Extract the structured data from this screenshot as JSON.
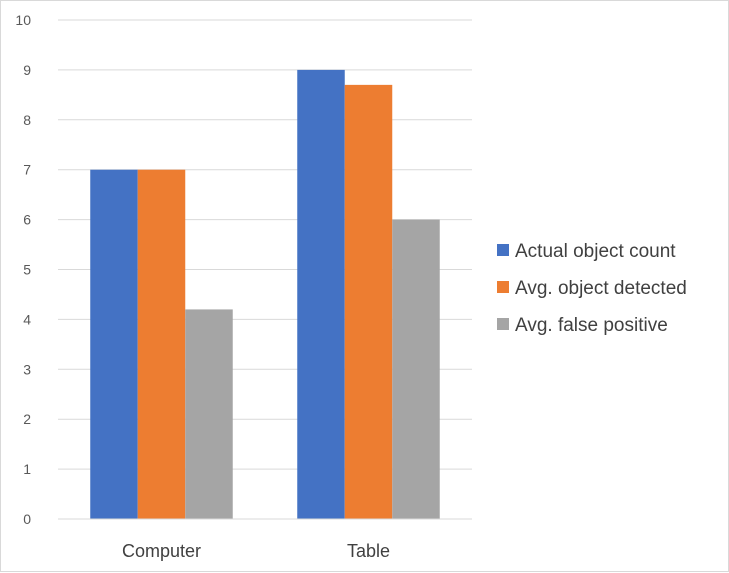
{
  "chart_data": {
    "type": "bar",
    "categories": [
      "Computer",
      "Table"
    ],
    "series": [
      {
        "name": "Actual object count",
        "values": [
          7,
          9
        ],
        "color": "#4472C4"
      },
      {
        "name": "Avg. object detected",
        "values": [
          7,
          8.7
        ],
        "color": "#ED7D31"
      },
      {
        "name": "Avg. false positive",
        "values": [
          4.2,
          6
        ],
        "color": "#A5A5A5"
      }
    ],
    "ylim": [
      0,
      10
    ],
    "yticks": [
      0,
      1,
      2,
      3,
      4,
      5,
      6,
      7,
      8,
      9,
      10
    ],
    "grid": true,
    "legend": "right",
    "title": "",
    "xlabel": "",
    "ylabel": ""
  }
}
